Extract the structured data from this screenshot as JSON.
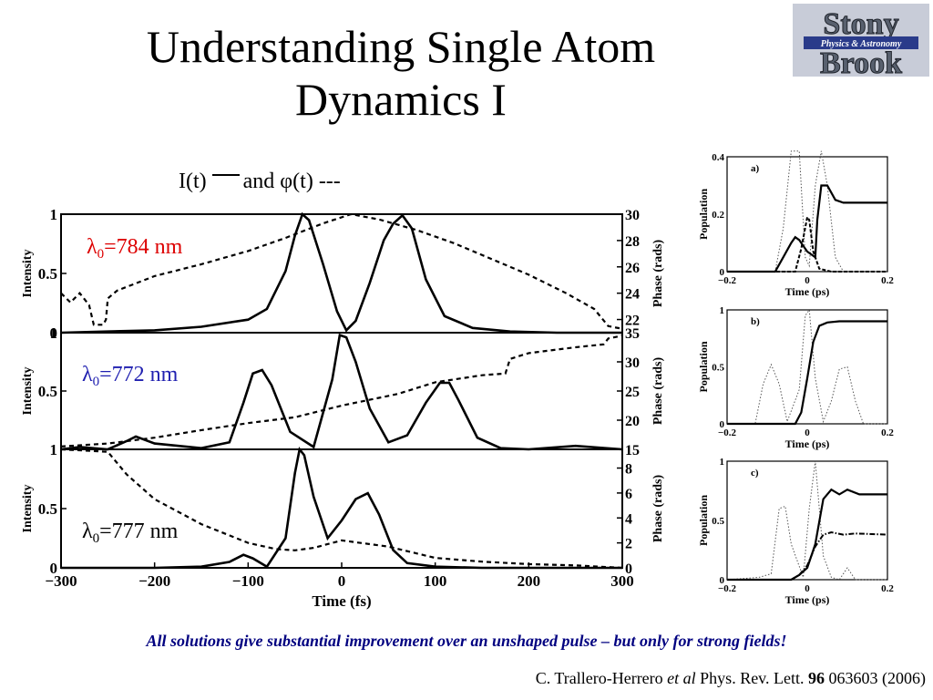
{
  "slide": {
    "title_line1": "Understanding Single Atom",
    "title_line2": "Dynamics I",
    "subtitle_before": "I(t)",
    "subtitle_after": "and φ(t) ---",
    "caption": "All solutions give substantial improvement over an unshaped pulse – but only for strong fields!",
    "citation": {
      "authors": "C. Trallero-Herrero",
      "etal": "et al",
      "journal": "Phys. Rev. Lett.",
      "volume": "96",
      "rest": "063603 (2006)"
    },
    "logo": {
      "line1": "Stony",
      "line2": "Brook",
      "ribbon": "Physics & Astronomy"
    }
  },
  "chart_data": [
    {
      "type": "line",
      "xlabel": "Time (fs)",
      "xlim": [
        -300,
        300
      ],
      "xticks": [
        "−300",
        "−200",
        "−100",
        "0",
        "100",
        "200",
        "300"
      ],
      "panels": [
        {
          "annotation_lambda": "λ",
          "annotation_sub": "0",
          "annotation_value": "=784 nm",
          "annotation_color": "#dd0000",
          "ylabel_left": "Intensity",
          "ylabel_right": "Phase (rads)",
          "left_ticks": [
            "1",
            "0.5",
            "0"
          ],
          "left_ylim": [
            0,
            1
          ],
          "right_ticks": [
            "30",
            "28",
            "26",
            "24",
            "22"
          ],
          "right_ylim": [
            21,
            30
          ],
          "intensity": {
            "x": [
              -300,
              -250,
              -200,
              -150,
              -100,
              -80,
              -60,
              -50,
              -42,
              -35,
              -20,
              -5,
              5,
              15,
              30,
              45,
              55,
              65,
              75,
              90,
              110,
              140,
              180,
              230,
              300
            ],
            "y": [
              0,
              0.01,
              0.02,
              0.05,
              0.11,
              0.2,
              0.52,
              0.82,
              1.0,
              0.95,
              0.58,
              0.18,
              0.02,
              0.1,
              0.42,
              0.78,
              0.92,
              0.99,
              0.88,
              0.45,
              0.14,
              0.04,
              0.01,
              0,
              0
            ]
          },
          "phase": {
            "x": [
              -300,
              -290,
              -280,
              -270,
              -265,
              -255,
              -252,
              -250,
              -240,
              -200,
              -150,
              -100,
              -60,
              -20,
              10,
              40,
              80,
              120,
              160,
              200,
              240,
              270,
              285,
              292,
              300
            ],
            "y": [
              24,
              23.3,
              24,
              23.1,
              21.6,
              21.6,
              22,
              23.6,
              24.2,
              25.3,
              26.2,
              27.2,
              28.2,
              29.3,
              30,
              29.6,
              28.8,
              27.8,
              26.6,
              25.4,
              24,
              22.8,
              21.5,
              21.4,
              21.3
            ]
          }
        },
        {
          "annotation_lambda": "λ",
          "annotation_sub": "0",
          "annotation_value": "=772 nm",
          "annotation_color": "#2020b0",
          "ylabel_left": "Intensity",
          "ylabel_right": "Phase (rads)",
          "left_ticks": [
            "1",
            "0.5"
          ],
          "left_ylim": [
            0,
            1
          ],
          "right_ticks": [
            "35",
            "30",
            "25",
            "20",
            "15"
          ],
          "right_ylim": [
            15,
            35
          ],
          "intensity": {
            "x": [
              -300,
              -280,
              -250,
              -230,
              -220,
              -200,
              -150,
              -120,
              -105,
              -95,
              -85,
              -75,
              -55,
              -30,
              -10,
              -2,
              5,
              15,
              30,
              50,
              70,
              90,
              105,
              115,
              125,
              145,
              170,
              200,
              250,
              300
            ],
            "y": [
              0,
              0.02,
              0,
              0.07,
              0.11,
              0.05,
              0.01,
              0.06,
              0.4,
              0.65,
              0.68,
              0.55,
              0.15,
              0.02,
              0.6,
              0.98,
              0.96,
              0.75,
              0.35,
              0.06,
              0.12,
              0.4,
              0.57,
              0.57,
              0.42,
              0.1,
              0.01,
              0,
              0.03,
              0
            ]
          },
          "phase": {
            "x": [
              -300,
              -250,
              -200,
              -150,
              -100,
              -50,
              0,
              30,
              60,
              100,
              150,
              175,
              180,
              200,
              250,
              280,
              285,
              300
            ],
            "y": [
              15.5,
              16,
              17,
              18.3,
              19.5,
              20.5,
              22.5,
              23.5,
              24.5,
              26.5,
              27.7,
              28,
              30.5,
              31.5,
              32.5,
              33,
              34,
              34.5
            ]
          }
        },
        {
          "annotation_lambda": "λ",
          "annotation_sub": "0",
          "annotation_value": "=777 nm",
          "annotation_color": "#000000",
          "ylabel_left": "Intensity",
          "ylabel_right": "Phase (rads)",
          "left_ticks": [
            "1",
            "0.5",
            "0"
          ],
          "left_ylim": [
            0,
            1
          ],
          "right_ticks": [
            "8",
            "6",
            "4",
            "2",
            "0"
          ],
          "right_ylim": [
            0,
            9.5
          ],
          "intensity": {
            "x": [
              -300,
              -200,
              -150,
              -120,
              -105,
              -95,
              -80,
              -60,
              -50,
              -45,
              -40,
              -30,
              -15,
              0,
              15,
              28,
              40,
              55,
              70,
              100,
              150,
              200,
              250,
              300
            ],
            "y": [
              0,
              0,
              0.01,
              0.05,
              0.11,
              0.08,
              0.01,
              0.25,
              0.8,
              1.0,
              0.95,
              0.6,
              0.25,
              0.4,
              0.58,
              0.63,
              0.45,
              0.15,
              0.04,
              0.01,
              0,
              0,
              0,
              0
            ]
          },
          "phase": {
            "x": [
              -300,
              -250,
              -230,
              -200,
              -150,
              -100,
              -70,
              -50,
              -30,
              0,
              50,
              100,
              150,
              200,
              250,
              300
            ],
            "y": [
              9.5,
              9.3,
              7.5,
              5.5,
              3.5,
              2,
              1.5,
              1.4,
              1.6,
              2.2,
              1.7,
              0.8,
              0.5,
              0.3,
              0.2,
              0
            ]
          }
        }
      ]
    },
    {
      "type": "line",
      "panels": [
        {
          "label": "a)",
          "ylabel": "Population",
          "xlabel": "Time (ps)",
          "xlim": [
            -0.2,
            0.2
          ],
          "ylim": [
            0,
            0.4
          ],
          "yticks": [
            "0.4",
            "0.2",
            "0"
          ],
          "xticks": [
            "−0.2",
            "0",
            "0.2"
          ],
          "solid": {
            "x": [
              -0.2,
              -0.08,
              -0.06,
              -0.04,
              -0.03,
              -0.02,
              -0.01,
              0.0,
              0.01,
              0.02,
              0.025,
              0.035,
              0.05,
              0.07,
              0.09,
              0.2
            ],
            "y": [
              0,
              0,
              0.05,
              0.1,
              0.12,
              0.11,
              0.09,
              0.07,
              0.06,
              0.05,
              0.18,
              0.3,
              0.3,
              0.25,
              0.24,
              0.24
            ]
          },
          "dashed": {
            "x": [
              -0.2,
              -0.03,
              -0.015,
              0,
              0.005,
              0.015,
              0.03,
              0.06,
              0.2
            ],
            "y": [
              0,
              0,
              0.08,
              0.19,
              0.18,
              0.07,
              0.01,
              0,
              0
            ]
          },
          "dotted": {
            "x": [
              -0.2,
              -0.08,
              -0.06,
              -0.04,
              -0.02,
              -0.005,
              0.005,
              0.02,
              0.035,
              0.05,
              0.07,
              0.09,
              0.2
            ],
            "y": [
              0,
              0,
              0.15,
              0.42,
              0.42,
              0.05,
              0.02,
              0.3,
              0.42,
              0.3,
              0.05,
              0,
              0
            ]
          }
        },
        {
          "label": "b)",
          "ylabel": "Population",
          "xlabel": "Time (ps)",
          "xlim": [
            -0.2,
            0.2
          ],
          "ylim": [
            0,
            1
          ],
          "yticks": [
            "1",
            "0.5",
            "0"
          ],
          "xticks": [
            "−0.2",
            "0",
            "0.2"
          ],
          "solid": {
            "x": [
              -0.2,
              -0.03,
              -0.015,
              0,
              0.015,
              0.03,
              0.05,
              0.08,
              0.2
            ],
            "y": [
              0,
              0,
              0.1,
              0.4,
              0.72,
              0.86,
              0.89,
              0.9,
              0.9
            ]
          },
          "dotted": {
            "x": [
              -0.2,
              -0.13,
              -0.11,
              -0.09,
              -0.07,
              -0.05,
              -0.02,
              -0.005,
              0.005,
              0.02,
              0.04,
              0.06,
              0.08,
              0.1,
              0.12,
              0.14,
              0.2
            ],
            "y": [
              0,
              0,
              0.35,
              0.52,
              0.35,
              0.02,
              0.3,
              0.95,
              1.0,
              0.4,
              0.02,
              0.2,
              0.48,
              0.5,
              0.2,
              0,
              0
            ]
          }
        },
        {
          "label": "c)",
          "ylabel": "Population",
          "xlabel": "Time (ps)",
          "xlim": [
            -0.2,
            0.2
          ],
          "ylim": [
            0,
            1
          ],
          "yticks": [
            "1",
            "0.5",
            "0"
          ],
          "xticks": [
            "−0.2",
            "0",
            "0.2"
          ],
          "solid": {
            "x": [
              -0.2,
              -0.04,
              -0.02,
              0,
              0.02,
              0.04,
              0.06,
              0.08,
              0.1,
              0.13,
              0.2
            ],
            "y": [
              0,
              0,
              0.04,
              0.1,
              0.3,
              0.68,
              0.76,
              0.72,
              0.76,
              0.72,
              0.72
            ]
          },
          "dashdot": {
            "x": [
              -0.2,
              -0.04,
              -0.02,
              0,
              0.02,
              0.04,
              0.06,
              0.09,
              0.12,
              0.2
            ],
            "y": [
              0,
              0,
              0.04,
              0.12,
              0.28,
              0.38,
              0.4,
              0.38,
              0.39,
              0.38
            ]
          },
          "dotted": {
            "x": [
              -0.2,
              -0.12,
              -0.09,
              -0.07,
              -0.055,
              -0.04,
              -0.01,
              0.005,
              0.02,
              0.04,
              0.06,
              0.08,
              0.1,
              0.12,
              0.2
            ],
            "y": [
              0,
              0.02,
              0.05,
              0.6,
              0.62,
              0.3,
              0.02,
              0.6,
              1.0,
              0.2,
              0.02,
              0,
              0.1,
              0,
              0
            ]
          }
        }
      ]
    }
  ]
}
